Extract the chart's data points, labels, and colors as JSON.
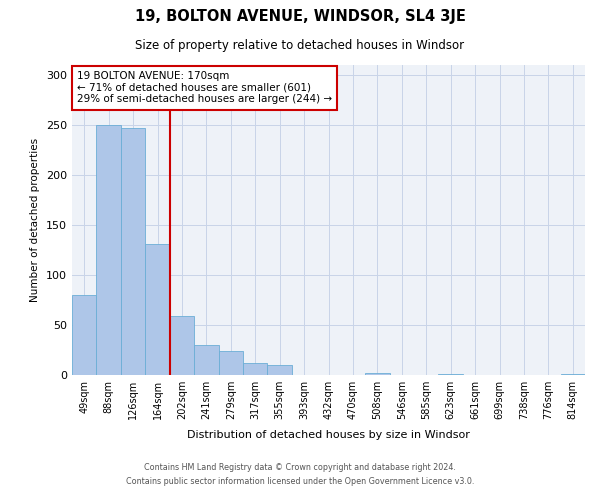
{
  "title": "19, BOLTON AVENUE, WINDSOR, SL4 3JE",
  "subtitle": "Size of property relative to detached houses in Windsor",
  "xlabel": "Distribution of detached houses by size in Windsor",
  "ylabel": "Number of detached properties",
  "bar_labels": [
    "49sqm",
    "88sqm",
    "126sqm",
    "164sqm",
    "202sqm",
    "241sqm",
    "279sqm",
    "317sqm",
    "355sqm",
    "393sqm",
    "432sqm",
    "470sqm",
    "508sqm",
    "546sqm",
    "585sqm",
    "623sqm",
    "661sqm",
    "699sqm",
    "738sqm",
    "776sqm",
    "814sqm"
  ],
  "bar_values": [
    80,
    250,
    247,
    131,
    59,
    30,
    24,
    12,
    10,
    0,
    0,
    0,
    2,
    0,
    0,
    1,
    0,
    0,
    0,
    0,
    1
  ],
  "bar_color": "#aec6e8",
  "bar_edgecolor": "#6baed6",
  "vline_x_idx": 3,
  "vline_color": "#cc0000",
  "annotation_text": "19 BOLTON AVENUE: 170sqm\n← 71% of detached houses are smaller (601)\n29% of semi-detached houses are larger (244) →",
  "annotation_box_edgecolor": "#cc0000",
  "annotation_box_facecolor": "#ffffff",
  "ylim": [
    0,
    310
  ],
  "yticks": [
    0,
    50,
    100,
    150,
    200,
    250,
    300
  ],
  "background_color": "#eef2f8",
  "footer_line1": "Contains HM Land Registry data © Crown copyright and database right 2024.",
  "footer_line2": "Contains public sector information licensed under the Open Government Licence v3.0."
}
